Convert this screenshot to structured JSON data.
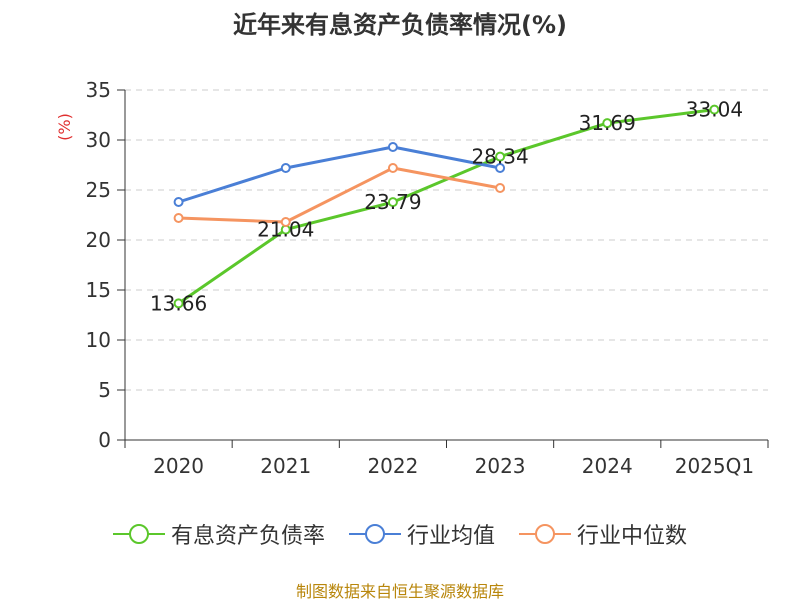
{
  "chart_data": {
    "type": "line",
    "title": "近年来有息资产负债率情况(%)",
    "ylabel": "(%)",
    "categories": [
      "2020",
      "2021",
      "2022",
      "2023",
      "2024",
      "2025Q1"
    ],
    "ylim": [
      0,
      35
    ],
    "yticks": [
      0,
      5,
      10,
      15,
      20,
      25,
      30,
      35
    ],
    "grid": true,
    "legend_position": "bottom",
    "series": [
      {
        "name": "有息资产负债率",
        "color": "#5bc72b",
        "values": [
          13.66,
          21.04,
          23.79,
          28.34,
          31.69,
          33.04
        ],
        "labels": [
          "13.66",
          "21.04",
          "23.79",
          "28.34",
          "31.69",
          "33.04"
        ]
      },
      {
        "name": "行业均值",
        "color": "#4a7fd6",
        "values": [
          23.8,
          27.2,
          29.3,
          27.2,
          null,
          null
        ]
      },
      {
        "name": "行业中位数",
        "color": "#f59460",
        "values": [
          22.2,
          21.8,
          27.2,
          25.2,
          null,
          null
        ]
      }
    ]
  },
  "legend": {
    "items": [
      {
        "label": "有息资产负债率"
      },
      {
        "label": "行业均值"
      },
      {
        "label": "行业中位数"
      }
    ]
  },
  "footer": {
    "source": "制图数据来自恒生聚源数据库"
  }
}
